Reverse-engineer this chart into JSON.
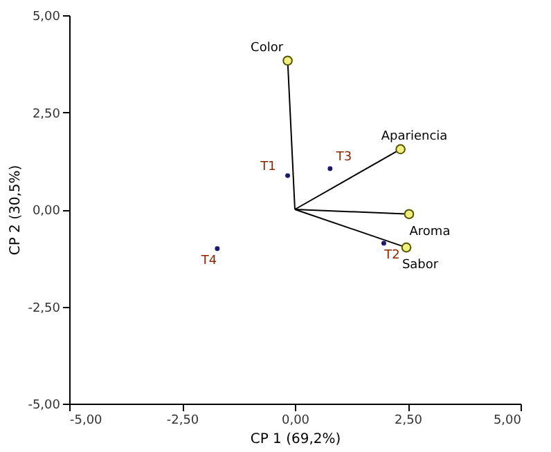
{
  "chart_data": {
    "type": "scatter",
    "xlabel": "CP 1 (69,2%)",
    "ylabel": "CP 2 (30,5%)",
    "xlim": [
      -5,
      5
    ],
    "ylim": [
      -5,
      5
    ],
    "xticks": [
      {
        "value": -5,
        "label": "-5,00"
      },
      {
        "value": -2.5,
        "label": "-2,50"
      },
      {
        "value": 0,
        "label": "0,00"
      },
      {
        "value": 2.5,
        "label": "2,50"
      },
      {
        "value": 5,
        "label": "5,00"
      }
    ],
    "yticks": [
      {
        "value": -5,
        "label": "-5,00"
      },
      {
        "value": -2.5,
        "label": "-2,50"
      },
      {
        "value": 0,
        "label": "0,00"
      },
      {
        "value": 2.5,
        "label": "2,50"
      },
      {
        "value": 5,
        "label": "5,00"
      }
    ],
    "grid": false,
    "series": [
      {
        "type": "line",
        "color": "#000000",
        "marker": "none",
        "x": [
          0,
          -0.16
        ],
        "values": [
          0,
          3.83
        ]
      },
      {
        "type": "line",
        "color": "#000000",
        "marker": "none",
        "x": [
          0,
          2.34
        ],
        "values": [
          0,
          1.55
        ]
      },
      {
        "type": "line",
        "color": "#000000",
        "marker": "none",
        "x": [
          0,
          2.53
        ],
        "values": [
          0,
          -0.12
        ]
      },
      {
        "type": "line",
        "color": "#000000",
        "marker": "none",
        "x": [
          0,
          2.47
        ],
        "values": [
          0,
          -0.98
        ]
      },
      {
        "type": "scatter",
        "color": "#1a1a6e",
        "marker": "circle",
        "x": [
          -0.16,
          0.78,
          -1.72,
          1.97
        ],
        "values": [
          0.87,
          1.05,
          -1.01,
          -0.87
        ]
      },
      {
        "type": "scatter",
        "color": "#f0f080",
        "marker": "circle",
        "x": [
          -0.16,
          2.34,
          2.53,
          2.47
        ],
        "values": [
          3.83,
          1.55,
          -0.12,
          -0.98
        ]
      }
    ],
    "annotations": [
      {
        "text": "T1",
        "x": -0.16,
        "y": 0.87
      },
      {
        "text": "T3",
        "x": 0.78,
        "y": 1.05
      },
      {
        "text": "T4",
        "x": -1.72,
        "y": -1.01
      },
      {
        "text": "T2",
        "x": 1.97,
        "y": -0.87
      },
      {
        "text": "Color",
        "x": -0.16,
        "y": 3.83
      },
      {
        "text": "Apariencia",
        "x": 2.34,
        "y": 1.55
      },
      {
        "text": "Aroma",
        "x": 2.53,
        "y": -0.12
      },
      {
        "text": "Sabor",
        "x": 2.47,
        "y": -0.98
      }
    ]
  }
}
